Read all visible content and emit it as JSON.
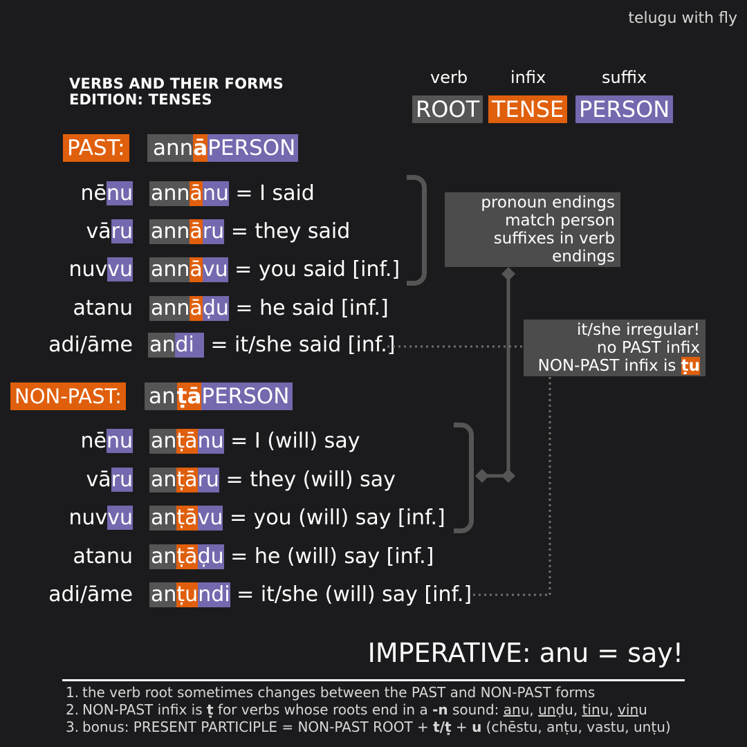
{
  "watermark": "telugu with fly",
  "title": {
    "line1": "VERBS AND THEIR FORMS",
    "line2": "EDITION: TENSES"
  },
  "legend": [
    {
      "label": "verb",
      "box": "ROOT"
    },
    {
      "label": "infix",
      "box": "TENSE"
    },
    {
      "label": "suffix",
      "box": "PERSON"
    }
  ],
  "past": {
    "tag": "PAST:",
    "formula": {
      "root": "ann",
      "infix": "ā",
      "suffix": "PERSON"
    },
    "rows": [
      {
        "pron_a": "nē",
        "pron_b": "nu",
        "root": "ann",
        "infix": "ā",
        "suffix": "nu",
        "gloss": "= I said"
      },
      {
        "pron_a": "vā",
        "pron_b": "ru",
        "root": "ann",
        "infix": "ā",
        "suffix": "ru",
        "gloss": "= they said"
      },
      {
        "pron_a": "nuv",
        "pron_b": "vu",
        "root": "ann",
        "infix": "ā",
        "suffix": "vu",
        "gloss": "= you said [inf.]"
      },
      {
        "pron_a": "atanu",
        "pron_b": "",
        "root": "ann",
        "infix": "ā",
        "suffix": "ḍu",
        "gloss": "= he said [inf.]"
      },
      {
        "pron_a": "adi/āme",
        "pron_b": "",
        "root": "an",
        "infix": "",
        "suffix": "di",
        "gloss": "= it/she said [inf.]"
      }
    ]
  },
  "nonpast": {
    "tag": "NON-PAST:",
    "formula": {
      "root": "an",
      "infix": "ṭā",
      "suffix": "PERSON"
    },
    "rows": [
      {
        "pron_a": "nē",
        "pron_b": "nu",
        "root": "an",
        "infix": "ṭā",
        "suffix": "nu",
        "gloss": "= I (will) say"
      },
      {
        "pron_a": "vā",
        "pron_b": "ru",
        "root": "an",
        "infix": "ṭā",
        "suffix": "ru",
        "gloss": "= they (will) say"
      },
      {
        "pron_a": "nuv",
        "pron_b": "vu",
        "root": "an",
        "infix": "ṭā",
        "suffix": "vu",
        "gloss": "= you (will) say [inf.]"
      },
      {
        "pron_a": "atanu",
        "pron_b": "",
        "root": "an",
        "infix": "ṭā",
        "suffix": "ḍu",
        "gloss": "= he (will) say [inf.]"
      },
      {
        "pron_a": "adi/āme",
        "pron_b": "",
        "root": "an",
        "infix": "ṭu",
        "suffix": "ndi",
        "gloss": "= it/she (will) say [inf.]"
      }
    ]
  },
  "note_pronoun": [
    "pronoun endings",
    "match person",
    "suffixes in verb",
    "endings"
  ],
  "note_irregular": {
    "line1": "it/she irregular!",
    "line2": "no PAST infix",
    "line3_prefix": "NON-PAST infix is ",
    "line3_hl": "ṭu"
  },
  "imperative": "IMPERATIVE: anu = say!",
  "footnotes": {
    "n1": {
      "num": "1.",
      "text": "the verb root sometimes changes between the PAST and NON-PAST forms"
    },
    "n2": {
      "num": "2.",
      "a": "NON-PAST infix is ",
      "b": "ṭ",
      "c": " for verbs whose roots end in a ",
      "d": "-n",
      "e": " sound: ",
      "w1": "an",
      "w1r": "u",
      "s1": ", ",
      "w2": "un",
      "w2r": "ḍu",
      "s2": ", ",
      "w3": "tin",
      "w3r": "u",
      "s3": ", ",
      "w4": "vin",
      "w4r": "u"
    },
    "n3": {
      "num": "3.",
      "a": "bonus: PRESENT PARTICIPLE = NON-PAST ROOT + ",
      "b": "t/ṭ",
      "c": " + ",
      "d": "u",
      "e": " (chēstu, anṭu, vastu, unṭu)"
    }
  }
}
